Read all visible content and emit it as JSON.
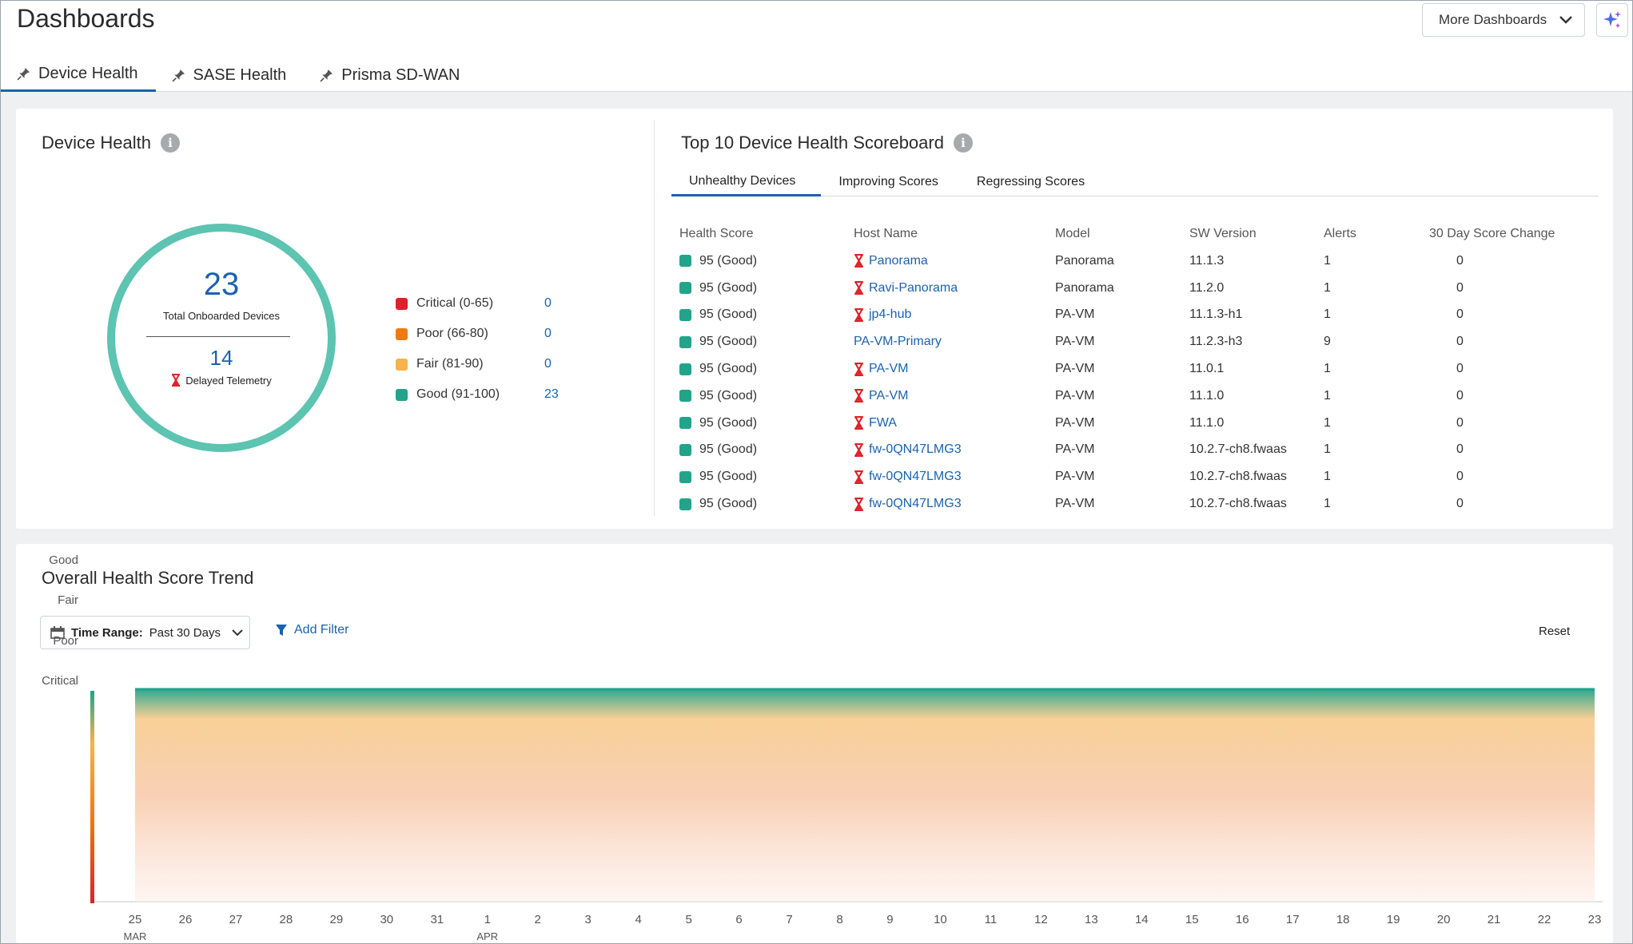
{
  "header": {
    "title": "Dashboards",
    "more_dashboards": "More Dashboards",
    "tabs": [
      {
        "label": "Device Health"
      },
      {
        "label": "SASE Health"
      },
      {
        "label": "Prisma SD-WAN"
      }
    ]
  },
  "device_health": {
    "title": "Device Health",
    "total": "23",
    "total_label": "Total Onboarded Devices",
    "delayed": "14",
    "delayed_label": "Delayed Telemetry",
    "legend": [
      {
        "label": "Critical (0-65)",
        "value": "0",
        "color": "#e0202a"
      },
      {
        "label": "Poor (66-80)",
        "value": "0",
        "color": "#f07a12"
      },
      {
        "label": "Fair (81-90)",
        "value": "0",
        "color": "#f6b24e"
      },
      {
        "label": "Good (91-100)",
        "value": "23",
        "color": "#21a48a"
      }
    ]
  },
  "scoreboard": {
    "title": "Top 10 Device Health Scoreboard",
    "tabs": [
      "Unhealthy Devices",
      "Improving Scores",
      "Regressing Scores"
    ],
    "columns": [
      "Health Score",
      "Host Name",
      "Model",
      "SW Version",
      "Alerts",
      "30 Day Score Change"
    ],
    "rows": [
      {
        "score": "95 (Good)",
        "host": "Panorama",
        "delayed": true,
        "model": "Panorama",
        "sw": "11.1.3",
        "alerts": "1",
        "change": "0"
      },
      {
        "score": "95 (Good)",
        "host": "Ravi-Panorama",
        "delayed": true,
        "model": "Panorama",
        "sw": "11.2.0",
        "alerts": "1",
        "change": "0"
      },
      {
        "score": "95 (Good)",
        "host": "jp4-hub",
        "delayed": true,
        "model": "PA-VM",
        "sw": "11.1.3-h1",
        "alerts": "1",
        "change": "0"
      },
      {
        "score": "95 (Good)",
        "host": "PA-VM-Primary",
        "delayed": false,
        "model": "PA-VM",
        "sw": "11.2.3-h3",
        "alerts": "9",
        "change": "0"
      },
      {
        "score": "95 (Good)",
        "host": "PA-VM",
        "delayed": true,
        "model": "PA-VM",
        "sw": "11.0.1",
        "alerts": "1",
        "change": "0"
      },
      {
        "score": "95 (Good)",
        "host": "PA-VM",
        "delayed": true,
        "model": "PA-VM",
        "sw": "11.1.0",
        "alerts": "1",
        "change": "0"
      },
      {
        "score": "95 (Good)",
        "host": "FWA",
        "delayed": true,
        "model": "PA-VM",
        "sw": "11.1.0",
        "alerts": "1",
        "change": "0"
      },
      {
        "score": "95 (Good)",
        "host": "fw-0QN47LMG3",
        "delayed": true,
        "model": "PA-VM",
        "sw": "10.2.7-ch8.fwaas",
        "alerts": "1",
        "change": "0"
      },
      {
        "score": "95 (Good)",
        "host": "fw-0QN47LMG3",
        "delayed": true,
        "model": "PA-VM",
        "sw": "10.2.7-ch8.fwaas",
        "alerts": "1",
        "change": "0"
      },
      {
        "score": "95 (Good)",
        "host": "fw-0QN47LMG3",
        "delayed": true,
        "model": "PA-VM",
        "sw": "10.2.7-ch8.fwaas",
        "alerts": "1",
        "change": "0"
      }
    ]
  },
  "trend": {
    "title": "Overall Health Score Trend",
    "time_range_label": "Time Range:",
    "time_range_value": "Past 30 Days",
    "add_filter": "Add Filter",
    "reset": "Reset"
  },
  "chart_data": {
    "type": "area",
    "title": "Overall Health Score Trend",
    "y_categories": [
      "Critical",
      "Poor",
      "Fair",
      "Good"
    ],
    "x": [
      "25",
      "26",
      "27",
      "28",
      "29",
      "30",
      "31",
      "1",
      "2",
      "3",
      "4",
      "5",
      "6",
      "7",
      "8",
      "9",
      "10",
      "11",
      "12",
      "13",
      "14",
      "15",
      "16",
      "17",
      "18",
      "19",
      "20",
      "21",
      "22",
      "23"
    ],
    "month_labels": [
      {
        "index": 0,
        "label": "MAR"
      },
      {
        "index": 7,
        "label": "APR"
      }
    ],
    "series": [
      {
        "name": "Health Score",
        "values": [
          95,
          95,
          95,
          95,
          95,
          95,
          95,
          95,
          95,
          95,
          95,
          95,
          95,
          95,
          95,
          95,
          95,
          95,
          95,
          95,
          95,
          95,
          95,
          95,
          95,
          95,
          95,
          95,
          95,
          95
        ]
      }
    ],
    "ylim": [
      0,
      100
    ]
  }
}
